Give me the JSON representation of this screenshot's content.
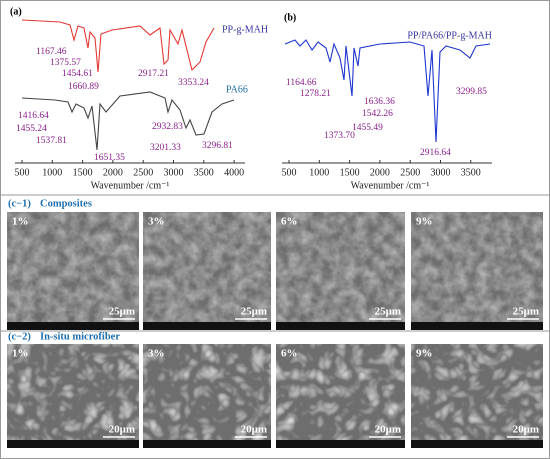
{
  "panel_a": {
    "label": "(a)",
    "spectra": [
      "PP-g-MAH",
      "PA66"
    ],
    "peaks": [
      "1167.46",
      "1375.57",
      "1454.61",
      "1660.89",
      "2917.21",
      "3353.24",
      "1416.64",
      "1455.24",
      "1537.81",
      "1651.35",
      "2932.83",
      "3201.33",
      "3296.81"
    ],
    "xticks": [
      "500",
      "1000",
      "1500",
      "2000",
      "2500",
      "3000",
      "3500",
      "4000"
    ],
    "xlabel": "Wavenumber /cm⁻¹"
  },
  "panel_b": {
    "label": "(b)",
    "spectrum": "PP/PA66/PP-g-MAH",
    "peaks": [
      "1164.66",
      "1278.21",
      "1636.36",
      "1542.26",
      "1373.70",
      "1455.49",
      "2916.64",
      "3299.85"
    ],
    "xticks": [
      "500",
      "1000",
      "1500",
      "2000",
      "2500",
      "3000",
      "3500"
    ],
    "xlabel": "Wavenumber /cm⁻¹"
  },
  "panel_c1": {
    "label": "(c−1)",
    "title": "Composites",
    "images": [
      "1%",
      "3%",
      "6%",
      "9%"
    ],
    "scale": "25μm"
  },
  "panel_c2": {
    "label": "(c−2)",
    "title": "In-situ microfiber",
    "images": [
      "1%",
      "3%",
      "6%",
      "9%"
    ],
    "scale": "20μm"
  }
}
